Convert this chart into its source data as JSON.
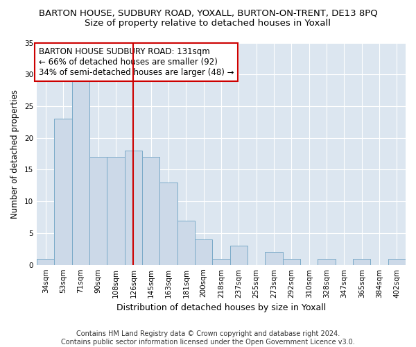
{
  "title": "BARTON HOUSE, SUDBURY ROAD, YOXALL, BURTON-ON-TRENT, DE13 8PQ",
  "subtitle": "Size of property relative to detached houses in Yoxall",
  "xlabel": "Distribution of detached houses by size in Yoxall",
  "ylabel": "Number of detached properties",
  "categories": [
    "34sqm",
    "53sqm",
    "71sqm",
    "90sqm",
    "108sqm",
    "126sqm",
    "145sqm",
    "163sqm",
    "181sqm",
    "200sqm",
    "218sqm",
    "237sqm",
    "255sqm",
    "273sqm",
    "292sqm",
    "310sqm",
    "328sqm",
    "347sqm",
    "365sqm",
    "384sqm",
    "402sqm"
  ],
  "values": [
    1,
    23,
    29,
    17,
    17,
    18,
    17,
    13,
    7,
    4,
    1,
    3,
    0,
    2,
    1,
    0,
    1,
    0,
    1,
    0,
    1
  ],
  "bar_color": "#ccd9e8",
  "bar_edge_color": "#7aaac8",
  "vline_x_index": 5,
  "vline_color": "#cc0000",
  "annotation_lines": [
    "BARTON HOUSE SUDBURY ROAD: 131sqm",
    "← 66% of detached houses are smaller (92)",
    "34% of semi-detached houses are larger (48) →"
  ],
  "annotation_box_color": "#ffffff",
  "annotation_box_edge": "#cc0000",
  "ylim": [
    0,
    35
  ],
  "yticks": [
    0,
    5,
    10,
    15,
    20,
    25,
    30,
    35
  ],
  "fig_background": "#ffffff",
  "plot_background": "#dce6f0",
  "grid_color": "#ffffff",
  "footer_line1": "Contains HM Land Registry data © Crown copyright and database right 2024.",
  "footer_line2": "Contains public sector information licensed under the Open Government Licence v3.0.",
  "title_fontsize": 9.5,
  "subtitle_fontsize": 9.5,
  "xlabel_fontsize": 9,
  "ylabel_fontsize": 8.5,
  "tick_fontsize": 7.5,
  "annotation_fontsize": 8.5,
  "footer_fontsize": 7
}
